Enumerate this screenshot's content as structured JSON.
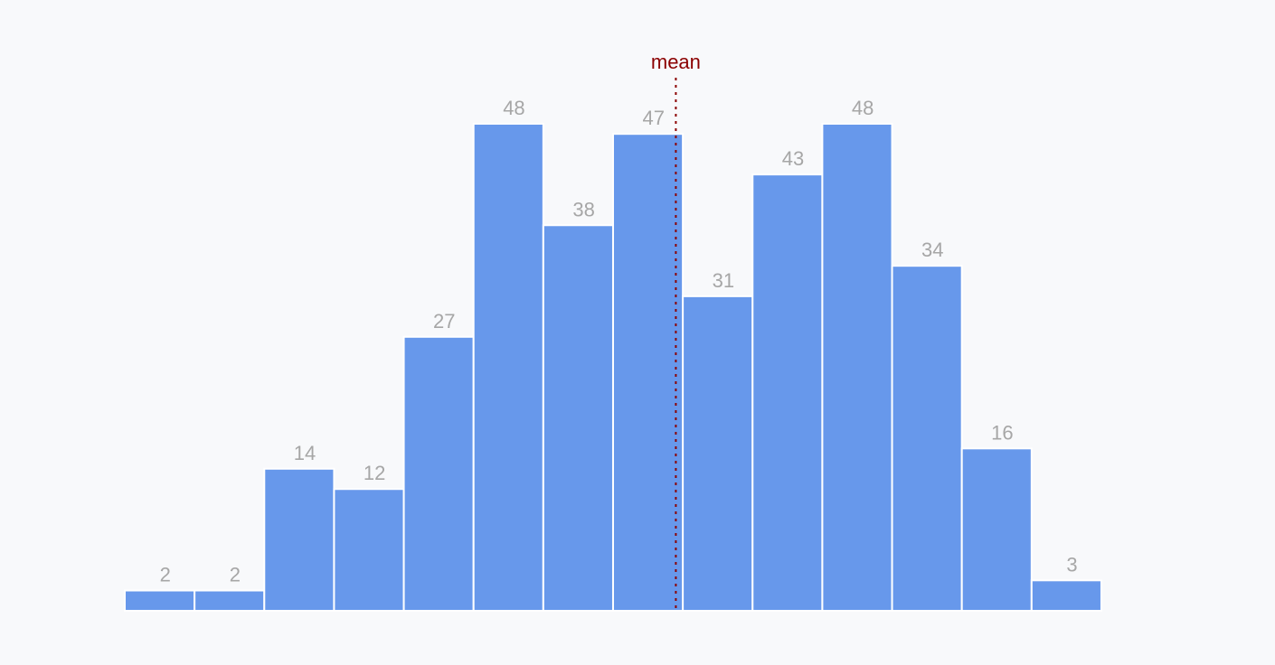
{
  "chart_data": {
    "type": "bar",
    "subtype": "histogram",
    "values": [
      2,
      2,
      14,
      12,
      27,
      48,
      38,
      47,
      31,
      43,
      48,
      34,
      16,
      3
    ],
    "ylim": [
      0,
      48
    ],
    "grid": false,
    "axes_visible": false,
    "bar_color": "#6798eb",
    "bar_stroke": "#ffffff",
    "data_labels": true,
    "annotations": [
      {
        "text": "mean",
        "bin_position": 7.9,
        "line_style": "dotted",
        "color": "#8b0000"
      }
    ]
  }
}
